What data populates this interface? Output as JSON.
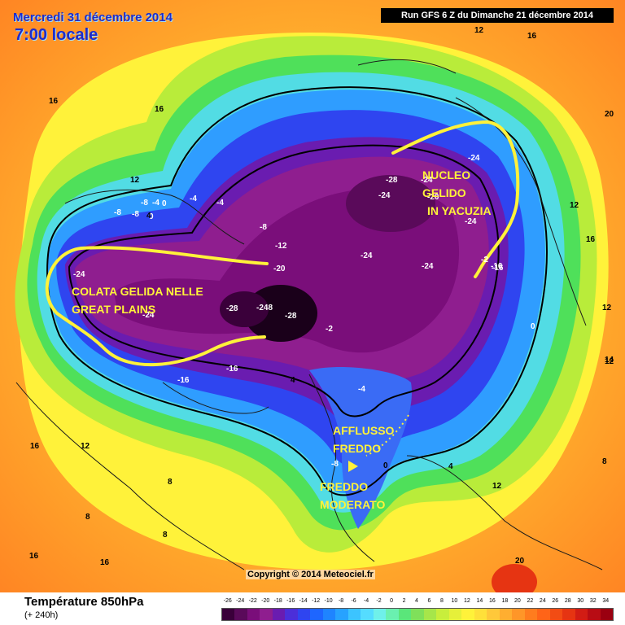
{
  "header": {
    "date": "Mercredi 31 décembre 2014",
    "time": "7:00 locale",
    "run": "Run GFS 6 Z du Dimanche 21 décembre 2014"
  },
  "footer": {
    "parameter": "Température 850hPa",
    "lead": "(+ 240h)",
    "copyright": "Copyright © 2014 Meteociel.fr"
  },
  "scale": {
    "ticks": [
      "-26",
      "-24",
      "-22",
      "-20",
      "-18",
      "-16",
      "-14",
      "-12",
      "-10",
      "-8",
      "-6",
      "-4",
      "-2",
      "0",
      "2",
      "4",
      "6",
      "8",
      "10",
      "12",
      "14",
      "16",
      "18",
      "20",
      "22",
      "24",
      "26",
      "28",
      "30",
      "32",
      "34"
    ],
    "colors": [
      "#3a003a",
      "#5a0a5a",
      "#7a0e7a",
      "#8f1e8f",
      "#6a1cb0",
      "#4b2fd9",
      "#2f45f0",
      "#1e66ff",
      "#1f84ff",
      "#27a2ff",
      "#3cc4ff",
      "#55dcff",
      "#6ff0ea",
      "#6af0b0",
      "#5ae67a",
      "#7fe05a",
      "#a6e64a",
      "#c8ee3c",
      "#e6f03a",
      "#fff23a",
      "#ffe03a",
      "#ffc83a",
      "#ffae30",
      "#ff9628",
      "#ff7c1e",
      "#ff6418",
      "#f24c14",
      "#e63412",
      "#d21c14",
      "#b80c14",
      "#9a0010"
    ]
  },
  "annotations": [
    {
      "id": "colata",
      "lines": [
        "COLATA GELIDA NELLE",
        "GREAT PLAINS"
      ]
    },
    {
      "id": "nucleo",
      "lines": [
        "NUCLEO",
        "GELIDO",
        "IN YACUZIA"
      ]
    },
    {
      "id": "afflusso",
      "lines": [
        "AFFLUSSO",
        "FREDDO"
      ]
    },
    {
      "id": "moderato",
      "lines": [
        "FREDDO",
        "MODERATO"
      ]
    }
  ],
  "contour_labels": [
    "-28",
    "-24",
    "-24",
    "-24",
    "-20",
    "-24",
    "-24",
    "-24",
    "-2",
    "-16",
    "-24",
    "-24",
    "-20",
    "-28",
    "-248",
    "-28",
    "-16",
    "-16",
    "-12",
    "-8",
    "-4",
    "0",
    "-4",
    "-8",
    "-8",
    "-8",
    "-4",
    "0",
    "4",
    "-8",
    "-4",
    "0",
    "4",
    "-16",
    "-2",
    "0",
    "4",
    "12",
    "12",
    "16",
    "16",
    "16",
    "12",
    "8",
    "8",
    "8",
    "16",
    "16",
    "12",
    "12",
    "8",
    "12",
    "16",
    "16",
    "20",
    "20",
    "12",
    "14"
  ]
}
